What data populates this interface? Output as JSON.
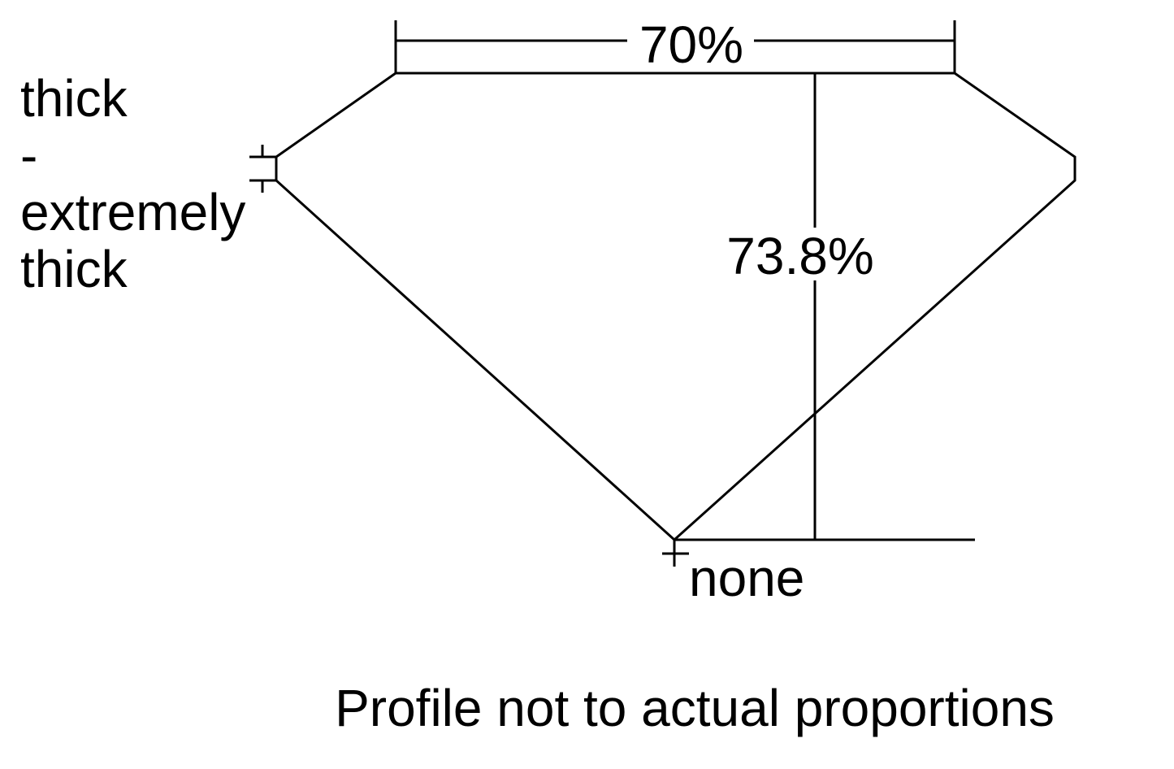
{
  "diagram": {
    "table_width_label": "70%",
    "total_depth_label": "73.8%",
    "girdle_label_lines": [
      "thick",
      "-",
      "extremely",
      "thick"
    ],
    "culet_label": "none",
    "footnote": "Profile not to actual proportions",
    "line_color": "#000000",
    "background_color": "#ffffff"
  }
}
